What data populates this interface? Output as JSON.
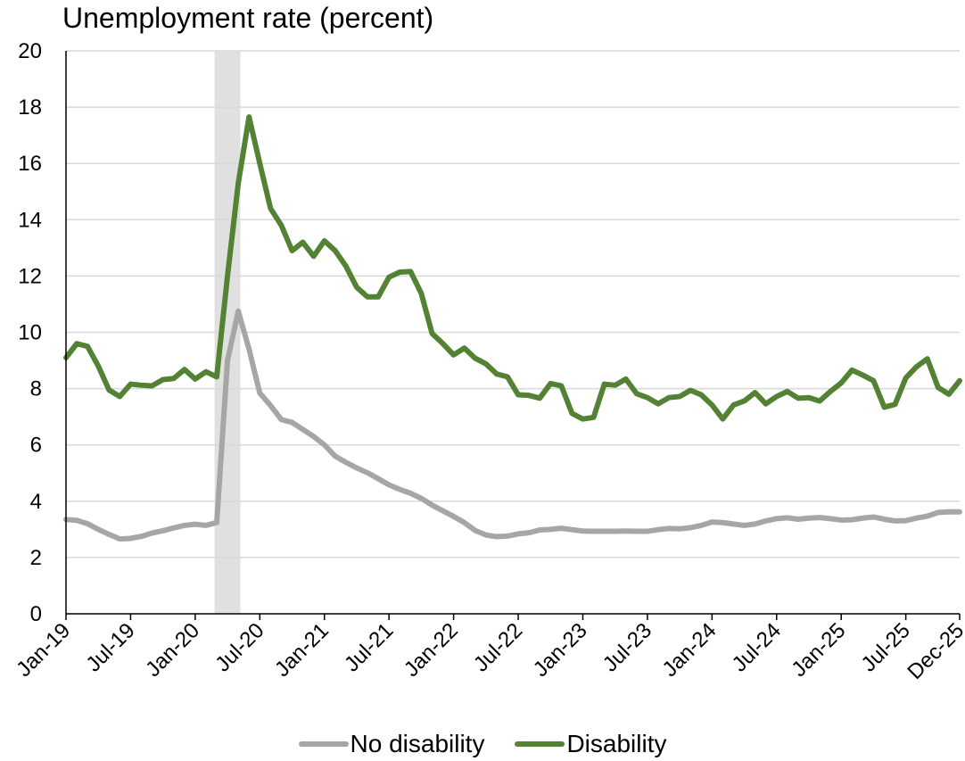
{
  "chart_data": {
    "type": "line",
    "title": "Unemployment rate (percent)",
    "xlabel": "",
    "ylabel": "",
    "ylim": [
      0,
      20
    ],
    "yticks": [
      0,
      2,
      4,
      6,
      8,
      10,
      12,
      14,
      16,
      18,
      20
    ],
    "grid": "horizontal",
    "legend_position": "bottom",
    "x_start": "2019-01",
    "x_end": "2025-12",
    "x_tick_labels": [
      "Jan-19",
      "Jul-19",
      "Jan-20",
      "Jul-20",
      "Jan-21",
      "Jul-21",
      "Jan-22",
      "Jul-22",
      "Jan-23",
      "Jul-23",
      "Jan-24",
      "Jul-24",
      "Jan-25",
      "Jul-25",
      "Dec-25"
    ],
    "shaded_period": [
      "2020-03",
      "2020-05"
    ],
    "shaded_color": "#e0e0e0",
    "series": [
      {
        "name": "No disability",
        "color": "#a6a6a6",
        "values": [
          3.35,
          3.32,
          3.2,
          3.0,
          2.82,
          2.66,
          2.68,
          2.75,
          2.87,
          2.95,
          3.05,
          3.14,
          3.18,
          3.14,
          3.24,
          9.0,
          10.75,
          9.4,
          7.84,
          7.4,
          6.9,
          6.8,
          6.55,
          6.3,
          6.0,
          5.6,
          5.38,
          5.18,
          5.01,
          4.8,
          4.58,
          4.42,
          4.28,
          4.1,
          3.86,
          3.66,
          3.46,
          3.24,
          2.96,
          2.8,
          2.74,
          2.76,
          2.84,
          2.88,
          2.98,
          3.0,
          3.04,
          2.99,
          2.94,
          2.93,
          2.93,
          2.93,
          2.94,
          2.93,
          2.93,
          2.99,
          3.03,
          3.02,
          3.06,
          3.14,
          3.26,
          3.24,
          3.19,
          3.14,
          3.19,
          3.3,
          3.38,
          3.41,
          3.36,
          3.4,
          3.42,
          3.38,
          3.33,
          3.34,
          3.4,
          3.44,
          3.36,
          3.3,
          3.31,
          3.4,
          3.47,
          3.6,
          3.62,
          3.62
        ]
      },
      {
        "name": "Disability",
        "color": "#548235",
        "values": [
          9.1,
          9.6,
          9.5,
          8.8,
          7.95,
          7.72,
          8.16,
          8.12,
          8.1,
          8.32,
          8.36,
          8.68,
          8.34,
          8.6,
          8.42,
          12.0,
          15.3,
          17.65,
          16.0,
          14.4,
          13.8,
          12.9,
          13.2,
          12.7,
          13.25,
          12.9,
          12.35,
          11.6,
          11.26,
          11.26,
          11.96,
          12.14,
          12.16,
          11.38,
          9.96,
          9.6,
          9.2,
          9.44,
          9.08,
          8.88,
          8.52,
          8.42,
          7.78,
          7.76,
          7.66,
          8.18,
          8.1,
          7.12,
          6.92,
          6.98,
          8.16,
          8.12,
          8.34,
          7.82,
          7.68,
          7.46,
          7.68,
          7.72,
          7.94,
          7.78,
          7.42,
          6.92,
          7.42,
          7.56,
          7.86,
          7.46,
          7.72,
          7.9,
          7.66,
          7.68,
          7.56,
          7.9,
          8.2,
          8.66,
          8.48,
          8.28,
          7.34,
          7.44,
          8.38,
          8.78,
          9.06,
          8.04,
          7.8,
          8.28
        ]
      }
    ]
  }
}
